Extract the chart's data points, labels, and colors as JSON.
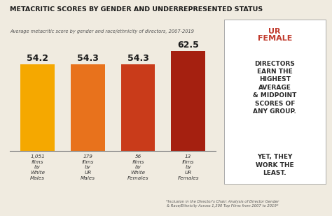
{
  "title": "METACRITIC SCORES BY GENDER AND UNDERREPRESENTED STATUS",
  "subtitle": "Average metacritic score by gender and race/ethnicity of directors, 2007-2019",
  "film_counts": [
    "1,051\nfilms\nby\nWhite\nMales",
    "179\nfilms\nby\nUR\nMales",
    "56\nfilms\nby\nWhite\nFemales",
    "13\nfilms\nby\nUR\nFemales"
  ],
  "values": [
    54.2,
    54.3,
    54.3,
    62.5
  ],
  "bar_colors": [
    "#F5A800",
    "#E8721C",
    "#C93B1A",
    "#A52010"
  ],
  "bg_color": "#F0EBE0",
  "footnote": "*Inclusion in the Director's Chair: Analysis of Director Gender\n& Race/Ethnicity Across 1,300 Top Films from 2007 to 2019*",
  "sidebar_red": "UR\nFEMALE",
  "sidebar_black1": "DIRECTORS\nEARN THE\nHIGHEST\nAVERAGE\n& MIDPOINT\nSCORES OF\nANY GROUP.",
  "sidebar_black2": "YET, THEY\nWORK THE\nLEAST.",
  "ylim_min": 45,
  "ylim_max": 68,
  "value_labels": [
    "54.2",
    "54.3",
    "54.3",
    "62.5"
  ]
}
